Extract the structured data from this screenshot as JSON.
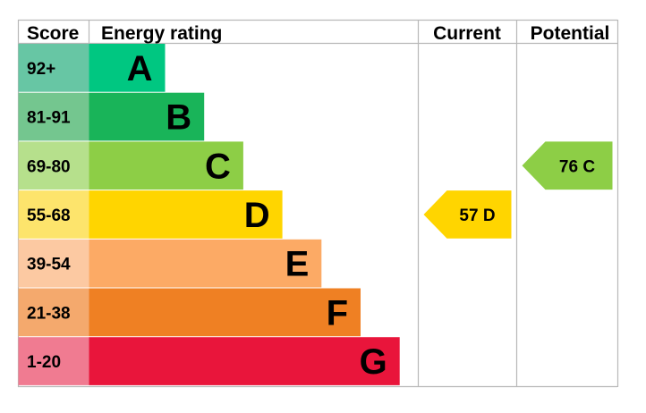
{
  "chart_data": {
    "type": "table",
    "headers": {
      "score": "Score",
      "rating": "Energy rating",
      "current": "Current",
      "potential": "Potential"
    },
    "bands": [
      {
        "score": "92+",
        "letter": "A",
        "color": "#00c781",
        "score_color": "#67c6a4"
      },
      {
        "score": "81-91",
        "letter": "B",
        "color": "#19b459",
        "score_color": "#74c68f"
      },
      {
        "score": "69-80",
        "letter": "C",
        "color": "#8dce46",
        "score_color": "#b6e08c"
      },
      {
        "score": "55-68",
        "letter": "D",
        "color": "#ffd500",
        "score_color": "#fde46c"
      },
      {
        "score": "39-54",
        "letter": "E",
        "color": "#fcaa65",
        "score_color": "#fcc9a2"
      },
      {
        "score": "21-38",
        "letter": "F",
        "color": "#ef8023",
        "score_color": "#f4a96d"
      },
      {
        "score": "1-20",
        "letter": "G",
        "color": "#e9153b",
        "score_color": "#f07b91"
      }
    ],
    "current": {
      "value": 57,
      "letter": "D",
      "label": "57  D",
      "color": "#ffd500"
    },
    "potential": {
      "value": 76,
      "letter": "C",
      "label": "76  C",
      "color": "#8dce46"
    }
  }
}
